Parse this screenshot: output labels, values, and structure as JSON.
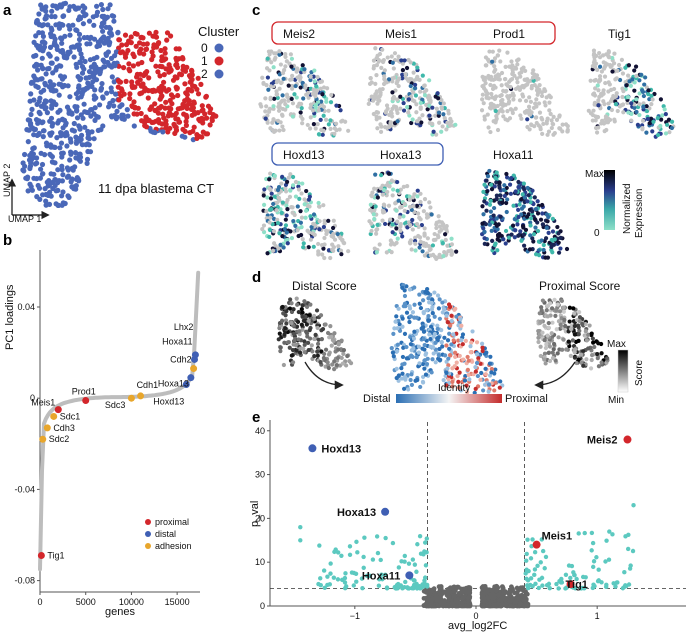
{
  "panel_labels": {
    "a": "a",
    "b": "b",
    "c": "c",
    "d": "d",
    "e": "e"
  },
  "colors": {
    "blue": "#3f5fb4",
    "red": "#d3262b",
    "orange": "#e8a62c",
    "teal": "#5cc9c0",
    "grey": "#bdbdbd",
    "dark": "#555555"
  },
  "panel_a": {
    "legend_title": "Cluster",
    "clusters": [
      {
        "id": "0",
        "color": "#4a68b8"
      },
      {
        "id": "1",
        "color": "#d3262b"
      },
      {
        "id": "2",
        "color": "#4a68b8"
      }
    ],
    "axis_x": "UMAP 1",
    "axis_y": "UMAP 2",
    "caption": "11 dpa blastema CT"
  },
  "chart_data": [
    {
      "type": "line",
      "panel": "b",
      "title": "",
      "xlabel": "genes",
      "ylabel": "PC1 loadings",
      "xlim": [
        0,
        17500
      ],
      "ylim": [
        -0.085,
        0.065
      ],
      "x_ticks": [
        "0",
        "5000",
        "10000",
        "15000"
      ],
      "y_ticks": [
        "0.04",
        "0",
        "-0.04",
        "-0.08"
      ],
      "legend": [
        {
          "label": "proximal",
          "color": "#d3262b"
        },
        {
          "label": "distal",
          "color": "#3f5fb4"
        },
        {
          "label": "adhesion",
          "color": "#e8a62c"
        }
      ],
      "genes": [
        {
          "name": "Tig1",
          "x": 150,
          "y": -0.069,
          "group": "proximal"
        },
        {
          "name": "Sdc2",
          "x": 300,
          "y": -0.018,
          "group": "adhesion"
        },
        {
          "name": "Cdh3",
          "x": 800,
          "y": -0.013,
          "group": "adhesion"
        },
        {
          "name": "Sdc1",
          "x": 1500,
          "y": -0.008,
          "group": "adhesion"
        },
        {
          "name": "Meis1",
          "x": 2000,
          "y": -0.005,
          "group": "proximal"
        },
        {
          "name": "Prod1",
          "x": 5000,
          "y": -0.001,
          "group": "proximal"
        },
        {
          "name": "Sdc3",
          "x": 10000,
          "y": 0.0,
          "group": "adhesion"
        },
        {
          "name": "Cdh1",
          "x": 11000,
          "y": 0.001,
          "group": "adhesion"
        },
        {
          "name": "Hoxd13",
          "x": 16000,
          "y": 0.006,
          "group": "distal"
        },
        {
          "name": "Hoxa13",
          "x": 16500,
          "y": 0.009,
          "group": "distal"
        },
        {
          "name": "Cdh2",
          "x": 16800,
          "y": 0.013,
          "group": "adhesion"
        },
        {
          "name": "Hoxa11",
          "x": 16900,
          "y": 0.017,
          "group": "distal"
        },
        {
          "name": "Lhx2",
          "x": 17000,
          "y": 0.019,
          "group": "distal"
        }
      ]
    },
    {
      "type": "scatter",
      "panel": "e",
      "title": "",
      "xlabel": "avg_log2FC",
      "ylabel": "p_val",
      "xlim": [
        -1.7,
        1.7
      ],
      "ylim": [
        0,
        40
      ],
      "x_ticks": [
        "−1",
        "0",
        "1"
      ],
      "y_ticks": [
        "0",
        "10",
        "20",
        "30",
        "40"
      ],
      "thresholds": {
        "x": [
          -0.4,
          0.4
        ],
        "y": 4
      },
      "highlighted": [
        {
          "name": "Hoxd13",
          "x": -1.35,
          "y": 36,
          "color": "#3f5fb4"
        },
        {
          "name": "Hoxa13",
          "x": -0.75,
          "y": 21.5,
          "color": "#3f5fb4"
        },
        {
          "name": "Hoxa11",
          "x": -0.55,
          "y": 7,
          "color": "#3f5fb4"
        },
        {
          "name": "Meis2",
          "x": 1.25,
          "y": 38,
          "color": "#d3262b"
        },
        {
          "name": "Meis1",
          "x": 0.5,
          "y": 14,
          "color": "#d3262b"
        },
        {
          "name": "Tig1",
          "x": 0.78,
          "y": 5,
          "color": "#d3262b"
        }
      ]
    }
  ],
  "panel_c": {
    "group_proximal": [
      "Meis2",
      "Meis1",
      "Prod1"
    ],
    "single": "Tig1",
    "group_distal": [
      "Hoxd13",
      "Hoxa13"
    ],
    "single2": "Hoxa11",
    "colorbar": {
      "max": "Max",
      "min": "0",
      "title1": "Normalized",
      "title2": "Expression"
    }
  },
  "panel_d": {
    "distal_title": "Distal Score",
    "proximal_title": "Proximal Score",
    "identity_label": "Identity",
    "distal_end": "Distal",
    "proximal_end": "Proximal",
    "score_bar": {
      "max": "Max",
      "min": "Min",
      "title": "Score"
    }
  }
}
